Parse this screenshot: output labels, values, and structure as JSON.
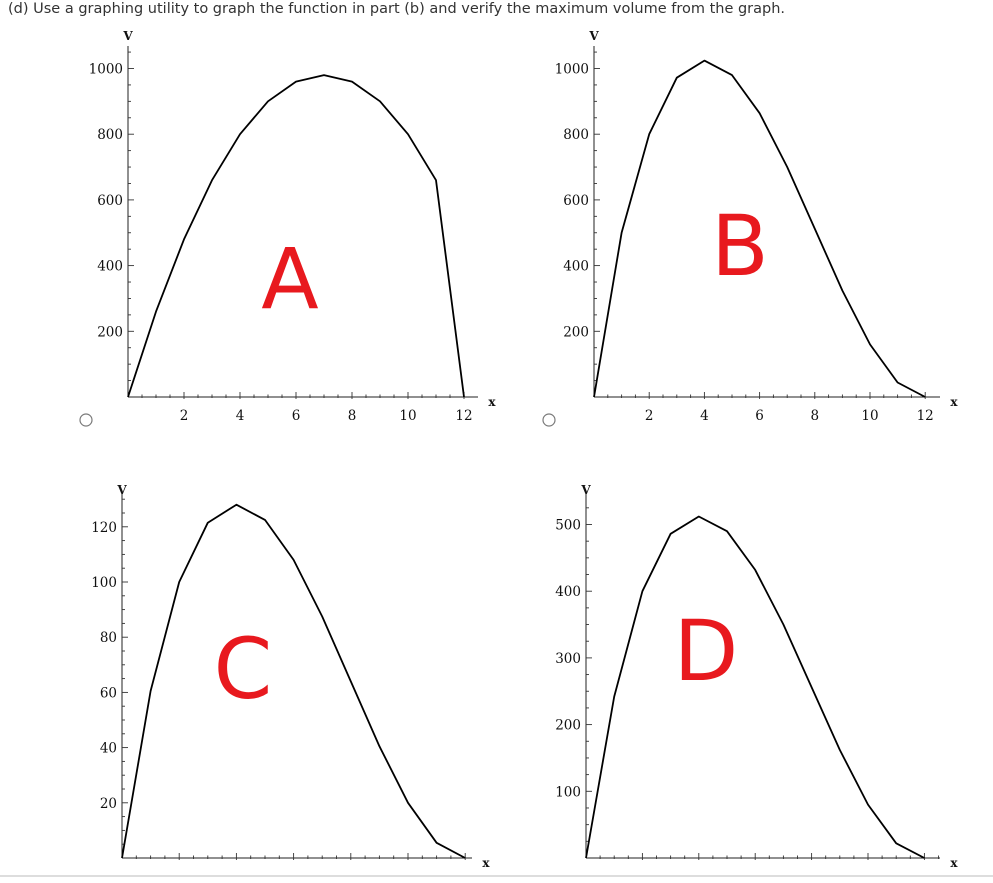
{
  "question": "(d) Use a graphing utility to graph the function in part (b) and verify the maximum volume from the graph.",
  "chart_data": [
    {
      "type": "line",
      "option_label": "A",
      "xlabel": "x",
      "ylabel": "V",
      "xlim": [
        0,
        12.8
      ],
      "ylim": [
        0,
        1080
      ],
      "xticks": [
        2,
        4,
        6,
        8,
        10,
        12
      ],
      "yticks": [
        200,
        400,
        600,
        800,
        1000
      ],
      "series": [
        {
          "x": [
            0,
            1,
            2,
            3,
            4,
            5,
            6,
            7,
            8,
            9,
            10,
            11,
            12
          ],
          "y": [
            0,
            260,
            480,
            660,
            800,
            900,
            960,
            980,
            960,
            900,
            800,
            660,
            0
          ]
        }
      ]
    },
    {
      "type": "line",
      "option_label": "B",
      "xlabel": "x",
      "ylabel": "V",
      "xlim": [
        0,
        12.3
      ],
      "ylim": [
        0,
        1080
      ],
      "xticks": [
        2,
        4,
        6,
        8,
        10,
        12
      ],
      "yticks": [
        200,
        400,
        600,
        800,
        1000
      ],
      "series": [
        {
          "x": [
            0,
            1,
            2,
            3,
            4,
            5,
            6,
            7,
            8,
            9,
            10,
            11,
            12
          ],
          "y": [
            0,
            500,
            800,
            972,
            1024,
            980,
            864,
            700,
            512,
            324,
            160,
            44,
            0
          ]
        }
      ]
    },
    {
      "type": "line",
      "option_label": "C",
      "xlabel": "x",
      "ylabel": "V",
      "xlim": [
        0,
        6.3
      ],
      "ylim": [
        0,
        135
      ],
      "xticks": [],
      "yticks": [
        20,
        40,
        60,
        80,
        100,
        120
      ],
      "series": [
        {
          "x": [
            0,
            0.5,
            1,
            1.5,
            2,
            2.5,
            3,
            3.5,
            4,
            4.5,
            5,
            5.5,
            6
          ],
          "y": [
            0,
            60.5,
            100,
            121.5,
            128,
            122.5,
            108,
            87.5,
            64,
            40.5,
            20,
            5.5,
            0
          ]
        }
      ]
    },
    {
      "type": "line",
      "option_label": "D",
      "xlabel": "x",
      "ylabel": "V",
      "xlim": [
        0,
        12.3
      ],
      "ylim": [
        0,
        540
      ],
      "xticks": [],
      "yticks": [
        100,
        200,
        300,
        400,
        500
      ],
      "series": [
        {
          "x": [
            0,
            1,
            2,
            3,
            4,
            5,
            6,
            7,
            8,
            9,
            10,
            11,
            12
          ],
          "y": [
            0,
            242,
            400,
            486,
            512,
            490,
            432,
            350,
            256,
            162,
            80,
            22,
            0
          ]
        }
      ]
    }
  ]
}
